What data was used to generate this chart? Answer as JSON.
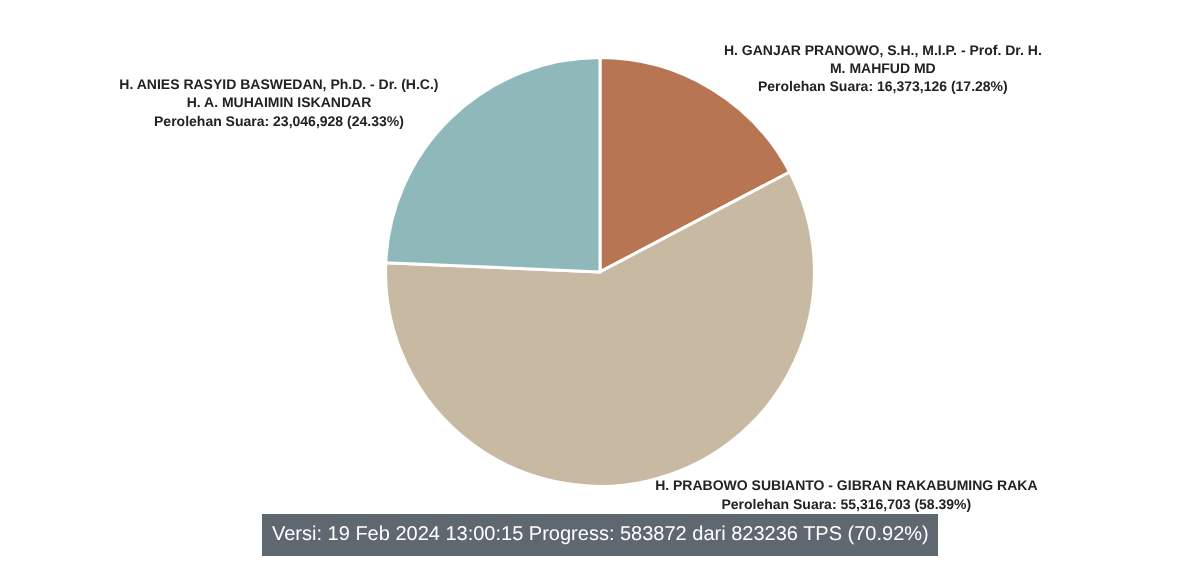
{
  "chart_data": {
    "type": "pie",
    "categories": [
      "H. GANJAR PRANOWO, S.H., M.I.P. - Prof. Dr. H. M. MAHFUD MD",
      "H. PRABOWO SUBIANTO - GIBRAN RAKABUMING RAKA",
      "H. ANIES RASYID BASWEDAN, Ph.D. - Dr. (H.C.) H. A. MUHAIMIN ISKANDAR"
    ],
    "values": [
      16373126,
      55316703,
      23046928
    ],
    "value_labels": [
      "Perolehan Suara: 16,373,126 (17.28%)",
      "Perolehan Suara: 55,316,703 (58.39%)",
      "Perolehan Suara: 23,046,928 (24.33%)"
    ],
    "colors": [
      "#b87552",
      "#c8b9a3",
      "#8fb8bb"
    ],
    "annotations": [
      "Versi: 19 Feb 2024 13:00:15 Progress: 583872 dari 823236 TPS (70.92%)"
    ],
    "legend": false
  }
}
